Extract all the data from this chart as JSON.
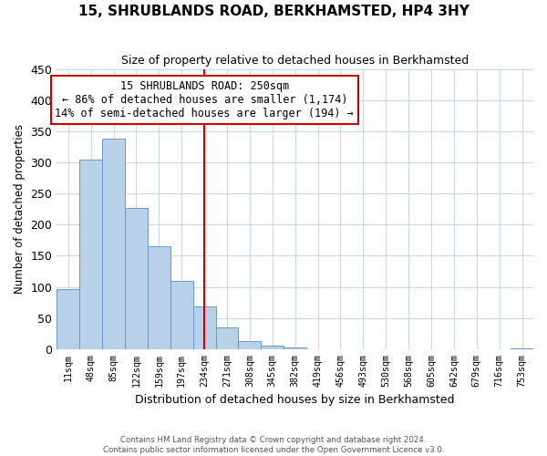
{
  "title": "15, SHRUBLANDS ROAD, BERKHAMSTED, HP4 3HY",
  "subtitle": "Size of property relative to detached houses in Berkhamsted",
  "xlabel": "Distribution of detached houses by size in Berkhamsted",
  "ylabel": "Number of detached properties",
  "bin_labels": [
    "11sqm",
    "48sqm",
    "85sqm",
    "122sqm",
    "159sqm",
    "197sqm",
    "234sqm",
    "271sqm",
    "308sqm",
    "345sqm",
    "382sqm",
    "419sqm",
    "456sqm",
    "493sqm",
    "530sqm",
    "568sqm",
    "605sqm",
    "642sqm",
    "679sqm",
    "716sqm",
    "753sqm"
  ],
  "bar_heights": [
    97,
    305,
    338,
    227,
    165,
    109,
    69,
    35,
    13,
    5,
    2,
    0,
    0,
    0,
    0,
    0,
    0,
    0,
    0,
    0,
    1
  ],
  "bar_color": "#b8d0e8",
  "bar_edgecolor": "#6699cc",
  "vline_x": 6.0,
  "vline_color": "#cc0000",
  "annotation_title": "15 SHRUBLANDS ROAD: 250sqm",
  "annotation_line1": "← 86% of detached houses are smaller (1,174)",
  "annotation_line2": "14% of semi-detached houses are larger (194) →",
  "annotation_box_color": "#ffffff",
  "annotation_box_edgecolor": "#cc0000",
  "ylim": [
    0,
    450
  ],
  "yticks": [
    0,
    50,
    100,
    150,
    200,
    250,
    300,
    350,
    400,
    450
  ],
  "footer1": "Contains HM Land Registry data © Crown copyright and database right 2024.",
  "footer2": "Contains public sector information licensed under the Open Government Licence v3.0.",
  "bg_color": "#ffffff",
  "grid_color": "#c8d8ea"
}
